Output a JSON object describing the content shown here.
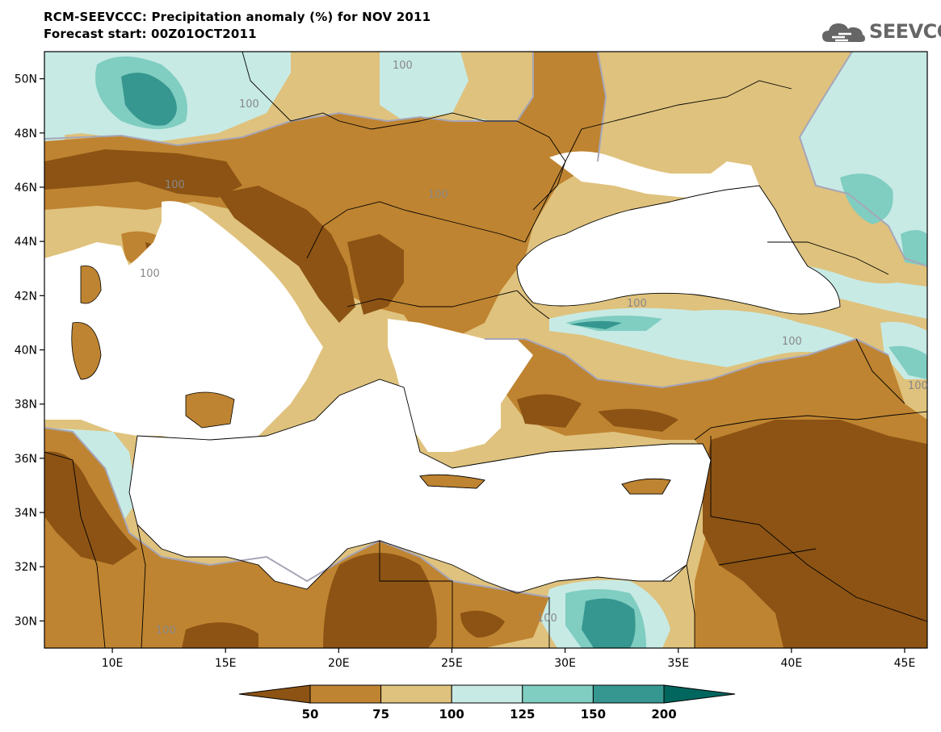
{
  "header": {
    "title": "RCM-SEEVCCC: Precipitation anomaly (%) for NOV 2011",
    "subtitle": "Forecast start: 00Z01OCT2011",
    "logo_text": "SEEVCCC"
  },
  "colors": {
    "c50": "#8c5314",
    "c75": "#bf8431",
    "c100": "#dfc27d",
    "c125": "#c7eae5",
    "c150": "#80cdc1",
    "c200": "#35978f",
    "c_over": "#01665e",
    "sea": "#ffffff",
    "contour_100": "#a6a6b8"
  },
  "chart_data": {
    "type": "heatmap",
    "title": "RCM-SEEVCCC: Precipitation anomaly (%) for NOV 2011",
    "xlim": [
      7,
      46
    ],
    "ylim": [
      29,
      51
    ],
    "x_ticks": [
      "10E",
      "15E",
      "20E",
      "25E",
      "30E",
      "35E",
      "40E",
      "45E"
    ],
    "y_ticks": [
      "30N",
      "32N",
      "34N",
      "36N",
      "38N",
      "40N",
      "42N",
      "44N",
      "46N",
      "48N",
      "50N"
    ],
    "colorbar": {
      "levels": [
        "50",
        "75",
        "100",
        "125",
        "150",
        "200"
      ],
      "extend": "both"
    },
    "contour_labels": [
      "100",
      "100",
      "100",
      "100",
      "100",
      "100",
      "100",
      "100",
      "100",
      "100"
    ]
  }
}
